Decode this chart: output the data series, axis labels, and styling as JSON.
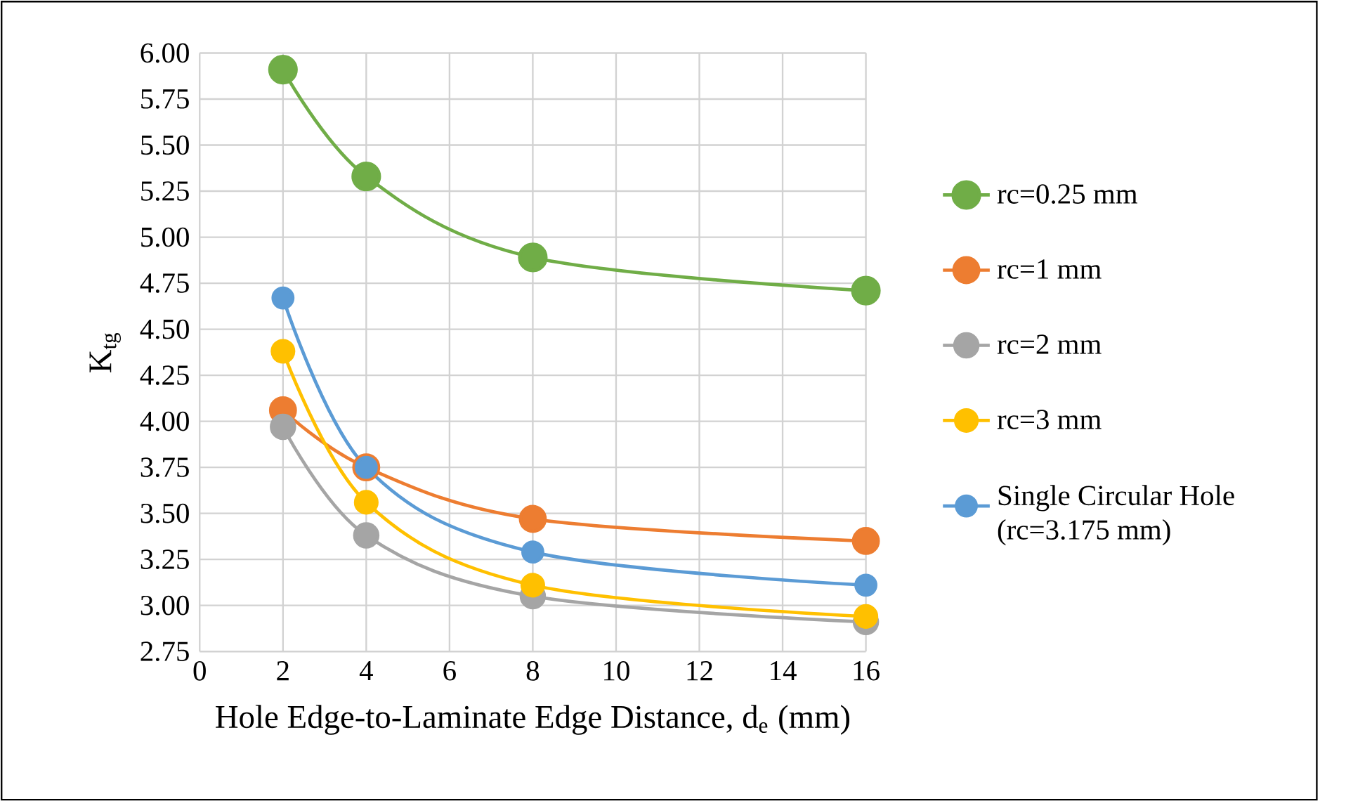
{
  "chart_data": {
    "type": "line",
    "xlabel": "Hole Edge-to-Laminate Edge Distance, d$_{e}$ (mm)",
    "ylabel": "K$_{tg}$",
    "x": [
      2,
      4,
      8,
      16
    ],
    "series": [
      {
        "name": "rc=0.25 mm",
        "color": "#70ad47",
        "values": [
          5.91,
          5.33,
          4.89,
          4.71
        ]
      },
      {
        "name": "rc=1 mm",
        "color": "#ed7d31",
        "values": [
          4.06,
          3.75,
          3.47,
          3.35
        ]
      },
      {
        "name": "rc=2 mm",
        "color": "#a5a5a5",
        "values": [
          3.97,
          3.38,
          3.05,
          2.91
        ]
      },
      {
        "name": "rc=3 mm",
        "color": "#ffc000",
        "values": [
          4.38,
          3.56,
          3.11,
          2.94
        ]
      },
      {
        "name": "Single Circular Hole (rc=3.175 mm)",
        "color": "#5b9bd5",
        "values": [
          4.67,
          3.75,
          3.29,
          3.11
        ]
      }
    ],
    "xlim": [
      0,
      16
    ],
    "xticks": [
      0,
      2,
      4,
      6,
      8,
      10,
      12,
      14,
      16
    ],
    "ylim": [
      2.75,
      6
    ],
    "yticks": [
      {
        "value": 2.75,
        "label": "2.75"
      },
      {
        "value": 3,
        "label": "3.00"
      },
      {
        "value": 3.25,
        "label": "3.25"
      },
      {
        "value": 3.5,
        "label": "3.50"
      },
      {
        "value": 3.75,
        "label": "3.75"
      },
      {
        "value": 4,
        "label": "4.00"
      },
      {
        "value": 4.25,
        "label": "4.25"
      },
      {
        "value": 4.5,
        "label": "4.50"
      },
      {
        "value": 4.75,
        "label": "4.75"
      },
      {
        "value": 5,
        "label": "5.00"
      },
      {
        "value": 5.25,
        "label": "5.25"
      },
      {
        "value": 5.5,
        "label": "5.50"
      },
      {
        "value": 5.75,
        "label": "5.75"
      },
      {
        "value": 6,
        "label": "6.00"
      }
    ],
    "grid": true,
    "legend": "right",
    "marker": "circle",
    "line_style": "solid"
  }
}
